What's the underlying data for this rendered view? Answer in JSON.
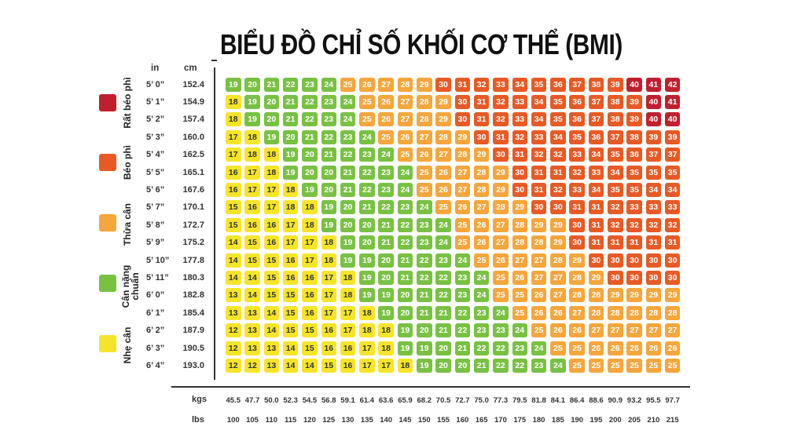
{
  "title": "BIỂU ĐỒ CHỈ SỐ KHỐI CƠ THỂ (BMI)",
  "legend": [
    {
      "label": "Rất béo phì",
      "color": "#c0202e"
    },
    {
      "label": "Béo phì",
      "color": "#e85a25"
    },
    {
      "label": "Thừa cân",
      "color": "#f5a63c"
    },
    {
      "label": "Cân nặng chuẩn",
      "color": "#79c143"
    },
    {
      "label": "Nhẹ cân",
      "color": "#f5e52a"
    }
  ],
  "axis_headers": {
    "in": "in",
    "cm": "cm",
    "kgs": "kgs",
    "lbs": "lbs"
  },
  "chart_data": {
    "type": "heatmap",
    "title": "BIỂU ĐỒ CHỈ SỐ KHỐI CƠ THỂ (BMI)",
    "rows_in": [
      "5’ 0”",
      "5’ 1”",
      "5’ 2”",
      "5’ 3”",
      "5’ 4”",
      "5’ 5”",
      "5’ 6”",
      "5’ 7”",
      "5’ 8”",
      "5’ 9”",
      "5’ 10”",
      "5’ 11”",
      "6’ 0”",
      "6’ 1”",
      "6’ 2”",
      "6’ 3”",
      "6’ 4”"
    ],
    "rows_cm": [
      "152.4",
      "154.9",
      "157.4",
      "160.0",
      "162.5",
      "165.1",
      "167.6",
      "170.1",
      "172.7",
      "175.2",
      "177.8",
      "180.3",
      "182.8",
      "185.4",
      "187.9",
      "190.5",
      "193.0"
    ],
    "cols_kgs": [
      "45.5",
      "47.7",
      "50.0",
      "52.3",
      "54.5",
      "56.8",
      "59.1",
      "61.4",
      "63.6",
      "65.9",
      "68.2",
      "70.5",
      "72.7",
      "75.0",
      "77.3",
      "79.5",
      "81.8",
      "84.1",
      "86.4",
      "88.6",
      "90.9",
      "93.2",
      "95.5",
      "97.7"
    ],
    "cols_lbs": [
      "100",
      "105",
      "110",
      "115",
      "120",
      "125",
      "130",
      "135",
      "140",
      "145",
      "150",
      "155",
      "160",
      "165",
      "170",
      "175",
      "180",
      "185",
      "190",
      "195",
      "200",
      "205",
      "210",
      "215"
    ],
    "values": [
      [
        19,
        20,
        21,
        22,
        23,
        24,
        25,
        26,
        27,
        28,
        29,
        30,
        31,
        32,
        33,
        34,
        35,
        36,
        37,
        38,
        39,
        40,
        41,
        42
      ],
      [
        18,
        19,
        20,
        21,
        22,
        23,
        24,
        25,
        26,
        27,
        28,
        29,
        30,
        31,
        32,
        33,
        34,
        35,
        36,
        37,
        38,
        39,
        40,
        41
      ],
      [
        18,
        19,
        20,
        21,
        22,
        23,
        24,
        25,
        26,
        27,
        28,
        29,
        30,
        31,
        32,
        33,
        34,
        35,
        36,
        37,
        38,
        39,
        40,
        40
      ],
      [
        17,
        18,
        19,
        20,
        21,
        22,
        23,
        24,
        25,
        26,
        27,
        28,
        29,
        30,
        31,
        32,
        33,
        34,
        35,
        36,
        37,
        38,
        39,
        39
      ],
      [
        17,
        18,
        18,
        19,
        20,
        21,
        22,
        23,
        24,
        25,
        26,
        27,
        28,
        29,
        30,
        31,
        32,
        32,
        33,
        34,
        35,
        36,
        37,
        37
      ],
      [
        16,
        17,
        18,
        19,
        20,
        20,
        21,
        22,
        23,
        24,
        25,
        26,
        27,
        28,
        29,
        30,
        31,
        31,
        32,
        33,
        34,
        35,
        35,
        35
      ],
      [
        16,
        17,
        17,
        18,
        19,
        20,
        21,
        22,
        23,
        24,
        25,
        26,
        27,
        28,
        29,
        30,
        31,
        32,
        33,
        34,
        35,
        35,
        34,
        34
      ],
      [
        15,
        16,
        17,
        18,
        18,
        19,
        20,
        21,
        22,
        23,
        24,
        25,
        26,
        27,
        28,
        29,
        30,
        30,
        31,
        31,
        32,
        33,
        33,
        33
      ],
      [
        15,
        16,
        16,
        17,
        18,
        19,
        20,
        20,
        21,
        22,
        23,
        24,
        25,
        26,
        27,
        28,
        29,
        29,
        30,
        31,
        32,
        32,
        32,
        32
      ],
      [
        14,
        15,
        16,
        17,
        17,
        18,
        19,
        20,
        21,
        22,
        23,
        24,
        25,
        26,
        27,
        28,
        28,
        29,
        30,
        31,
        31,
        31,
        31,
        31
      ],
      [
        14,
        15,
        15,
        16,
        17,
        18,
        19,
        19,
        20,
        21,
        22,
        23,
        24,
        25,
        26,
        27,
        27,
        28,
        29,
        30,
        30,
        30,
        30,
        30
      ],
      [
        14,
        14,
        15,
        16,
        16,
        17,
        18,
        19,
        20,
        21,
        22,
        22,
        23,
        24,
        25,
        26,
        27,
        27,
        28,
        29,
        30,
        30,
        30,
        30
      ],
      [
        13,
        14,
        15,
        15,
        16,
        17,
        18,
        19,
        19,
        20,
        21,
        22,
        23,
        24,
        25,
        25,
        26,
        27,
        28,
        28,
        29,
        29,
        29,
        29
      ],
      [
        13,
        13,
        14,
        15,
        16,
        17,
        17,
        18,
        19,
        20,
        21,
        21,
        22,
        23,
        24,
        25,
        26,
        26,
        27,
        28,
        28,
        28,
        28,
        28
      ],
      [
        12,
        13,
        14,
        15,
        15,
        16,
        17,
        18,
        18,
        19,
        20,
        21,
        22,
        23,
        23,
        24,
        25,
        26,
        26,
        27,
        27,
        27,
        27,
        27
      ],
      [
        12,
        13,
        13,
        14,
        15,
        16,
        16,
        17,
        18,
        19,
        19,
        20,
        21,
        22,
        22,
        23,
        24,
        25,
        25,
        26,
        26,
        26,
        26,
        26
      ],
      [
        12,
        12,
        13,
        14,
        14,
        15,
        16,
        17,
        17,
        18,
        19,
        20,
        20,
        21,
        22,
        22,
        23,
        24,
        25,
        25,
        25,
        25,
        25,
        25
      ]
    ],
    "color_bands": [
      {
        "max": 18,
        "color": "#f5e52a"
      },
      {
        "max": 24,
        "color": "#79c143"
      },
      {
        "max": 29,
        "color": "#f5a63c"
      },
      {
        "max": 39,
        "color": "#e85a25"
      },
      {
        "max": 99,
        "color": "#c0202e"
      }
    ]
  }
}
